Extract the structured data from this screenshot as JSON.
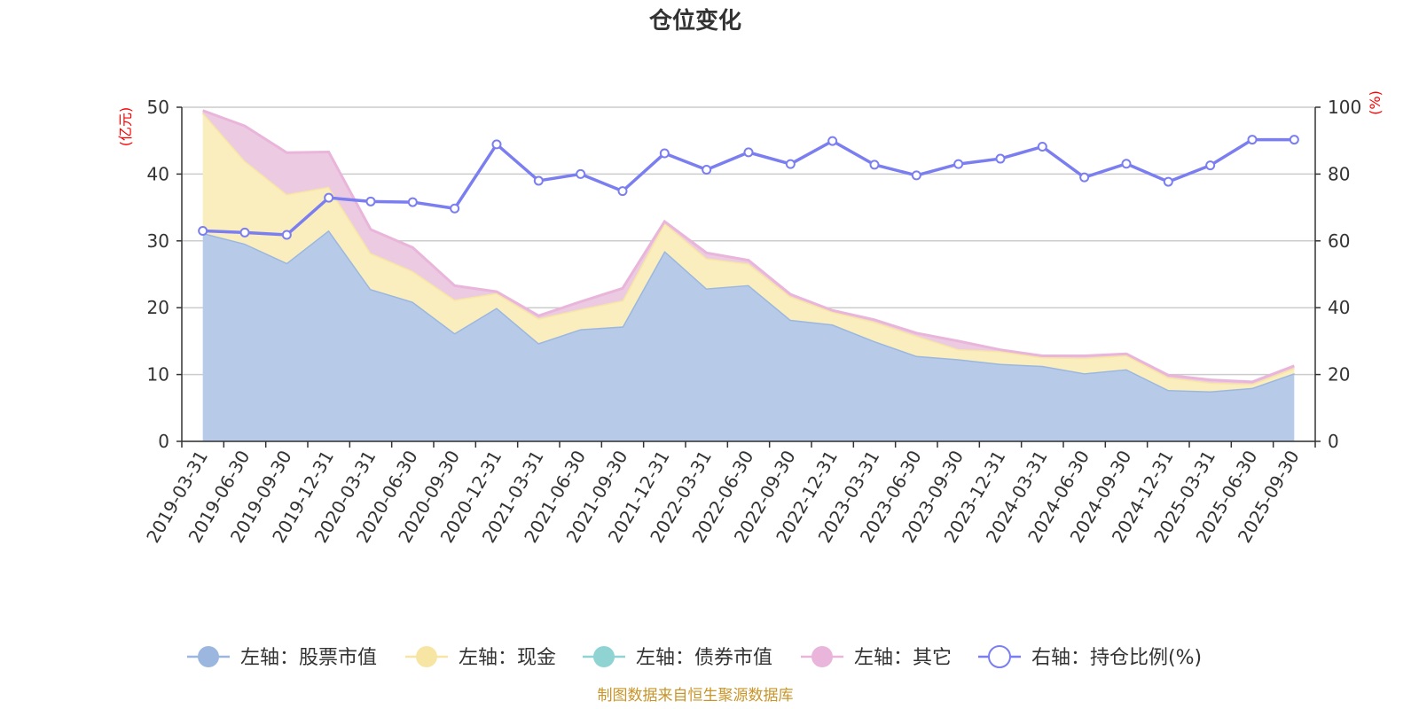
{
  "chart_data": {
    "type": "area",
    "title": "仓位变化",
    "categories": [
      "2019-03-31",
      "2019-06-30",
      "2019-09-30",
      "2019-12-31",
      "2020-03-31",
      "2020-06-30",
      "2020-09-30",
      "2020-12-31",
      "2021-03-31",
      "2021-06-30",
      "2021-09-30",
      "2021-12-31",
      "2022-03-31",
      "2022-06-30",
      "2022-09-30",
      "2022-12-31",
      "2023-03-31",
      "2023-06-30",
      "2023-09-30",
      "2023-12-31",
      "2024-03-31",
      "2024-06-30",
      "2024-09-30",
      "2024-12-31",
      "2025-03-31",
      "2025-06-30",
      "2025-09-30"
    ],
    "left_axis": {
      "unit": "(亿元)",
      "min": 0,
      "max": 50,
      "ticks": [
        0,
        10,
        20,
        30,
        40,
        50
      ]
    },
    "right_axis": {
      "unit": "(%)",
      "min": 0,
      "max": 100,
      "ticks": [
        0,
        20,
        40,
        60,
        80,
        100
      ]
    },
    "stacked": true,
    "series": [
      {
        "name": "左轴：股票市值",
        "axis": "left",
        "color": "#9bb7e0",
        "fill": "#b7cbe9",
        "values": [
          31.2,
          29.6,
          26.7,
          31.6,
          22.8,
          20.9,
          16.2,
          20.0,
          14.7,
          16.8,
          17.2,
          28.5,
          22.9,
          23.4,
          18.2,
          17.5,
          15.0,
          12.8,
          12.3,
          11.6,
          11.3,
          10.2,
          10.8,
          7.7,
          7.5,
          8.0,
          10.2
        ]
      },
      {
        "name": "左轴：现金",
        "axis": "left",
        "color": "#f7e6a3",
        "fill": "#faedbe",
        "values": [
          18.0,
          12.4,
          10.3,
          6.5,
          5.4,
          4.6,
          5.0,
          2.2,
          3.7,
          3.0,
          3.9,
          4.2,
          4.5,
          3.2,
          3.5,
          1.9,
          2.9,
          3.0,
          1.5,
          1.9,
          1.3,
          2.3,
          2.1,
          1.9,
          1.3,
          0.6,
          0.8
        ]
      },
      {
        "name": "左轴：债券市值",
        "axis": "left",
        "color": "#8fd3d3",
        "fill": "#b4e2e2",
        "values": [
          0,
          0,
          0,
          0,
          0,
          0,
          0,
          0,
          0,
          0,
          0,
          0,
          0,
          0,
          0,
          0,
          0,
          0,
          0,
          0,
          0,
          0,
          0,
          0,
          0,
          0,
          0
        ]
      },
      {
        "name": "左轴：其它",
        "axis": "left",
        "color": "#e9b5da",
        "fill": "#eccbe2",
        "values": [
          0.3,
          5.2,
          6.2,
          5.2,
          3.5,
          3.5,
          2.1,
          0.2,
          0.4,
          1.1,
          1.8,
          0.2,
          0.8,
          0.5,
          0.3,
          0.2,
          0.3,
          0.4,
          1.2,
          0.2,
          0.2,
          0.3,
          0.2,
          0.3,
          0.4,
          0.3,
          0.3
        ]
      },
      {
        "name": "右轴：持仓比例(%)",
        "axis": "right",
        "type": "line",
        "color": "#7b7ef0",
        "values": [
          63.0,
          62.5,
          61.8,
          72.9,
          71.8,
          71.6,
          69.7,
          88.9,
          78.0,
          80.0,
          74.9,
          86.2,
          81.3,
          86.5,
          83.0,
          89.9,
          82.8,
          79.6,
          83.0,
          84.6,
          88.2,
          79.0,
          83.1,
          77.7,
          82.6,
          90.3,
          90.3
        ]
      }
    ]
  },
  "footer": {
    "source_text": "制图数据来自恒生聚源数据库"
  }
}
